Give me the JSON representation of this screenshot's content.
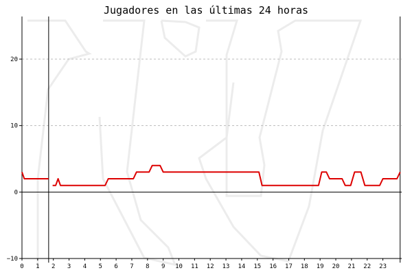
{
  "chart_data": {
    "type": "line",
    "title": "Jugadores en las últimas 24 horas",
    "xlabel": "",
    "ylabel": "",
    "xlim": [
      0,
      24.2
    ],
    "ylim": [
      -10,
      26
    ],
    "x_ticks": [
      "0",
      "1",
      "2",
      "3",
      "4",
      "5",
      "6",
      "7",
      "8",
      "9",
      "10",
      "11",
      "12",
      "13",
      "14",
      "15",
      "16",
      "17",
      "18",
      "19",
      "20",
      "21",
      "22",
      "23"
    ],
    "y_ticks": [
      {
        "value": 20,
        "label": "20"
      },
      {
        "value": 10,
        "label": "10"
      },
      {
        "value": 0,
        "label": "0"
      },
      {
        "value": -10,
        "label": "−10"
      }
    ],
    "grid": true,
    "line_color": "#dd0000",
    "watermark_color": "#ececec",
    "markers": [
      1.7,
      24.1
    ],
    "series": [
      {
        "name": "",
        "segments": [
          [
            [
              0,
              3
            ],
            [
              0.15,
              2
            ],
            [
              1.7,
              2
            ]
          ],
          [
            [
              1.95,
              1
            ],
            [
              2.15,
              1
            ],
            [
              2.3,
              2
            ],
            [
              2.45,
              1
            ],
            [
              5.3,
              1
            ],
            [
              5.5,
              2
            ],
            [
              7.1,
              2
            ],
            [
              7.3,
              3
            ],
            [
              8.1,
              3
            ],
            [
              8.3,
              4
            ],
            [
              8.8,
              4
            ],
            [
              9.0,
              3
            ],
            [
              15.1,
              3
            ],
            [
              15.3,
              1
            ],
            [
              18.9,
              1
            ],
            [
              19.1,
              3
            ],
            [
              19.4,
              3
            ],
            [
              19.6,
              2
            ],
            [
              20.4,
              2
            ],
            [
              20.6,
              1
            ],
            [
              20.95,
              1
            ],
            [
              21.2,
              3
            ],
            [
              21.6,
              3
            ],
            [
              21.85,
              1
            ],
            [
              22.8,
              1
            ],
            [
              23.0,
              2
            ],
            [
              23.9,
              2
            ],
            [
              24.1,
              3
            ]
          ]
        ]
      }
    ]
  }
}
